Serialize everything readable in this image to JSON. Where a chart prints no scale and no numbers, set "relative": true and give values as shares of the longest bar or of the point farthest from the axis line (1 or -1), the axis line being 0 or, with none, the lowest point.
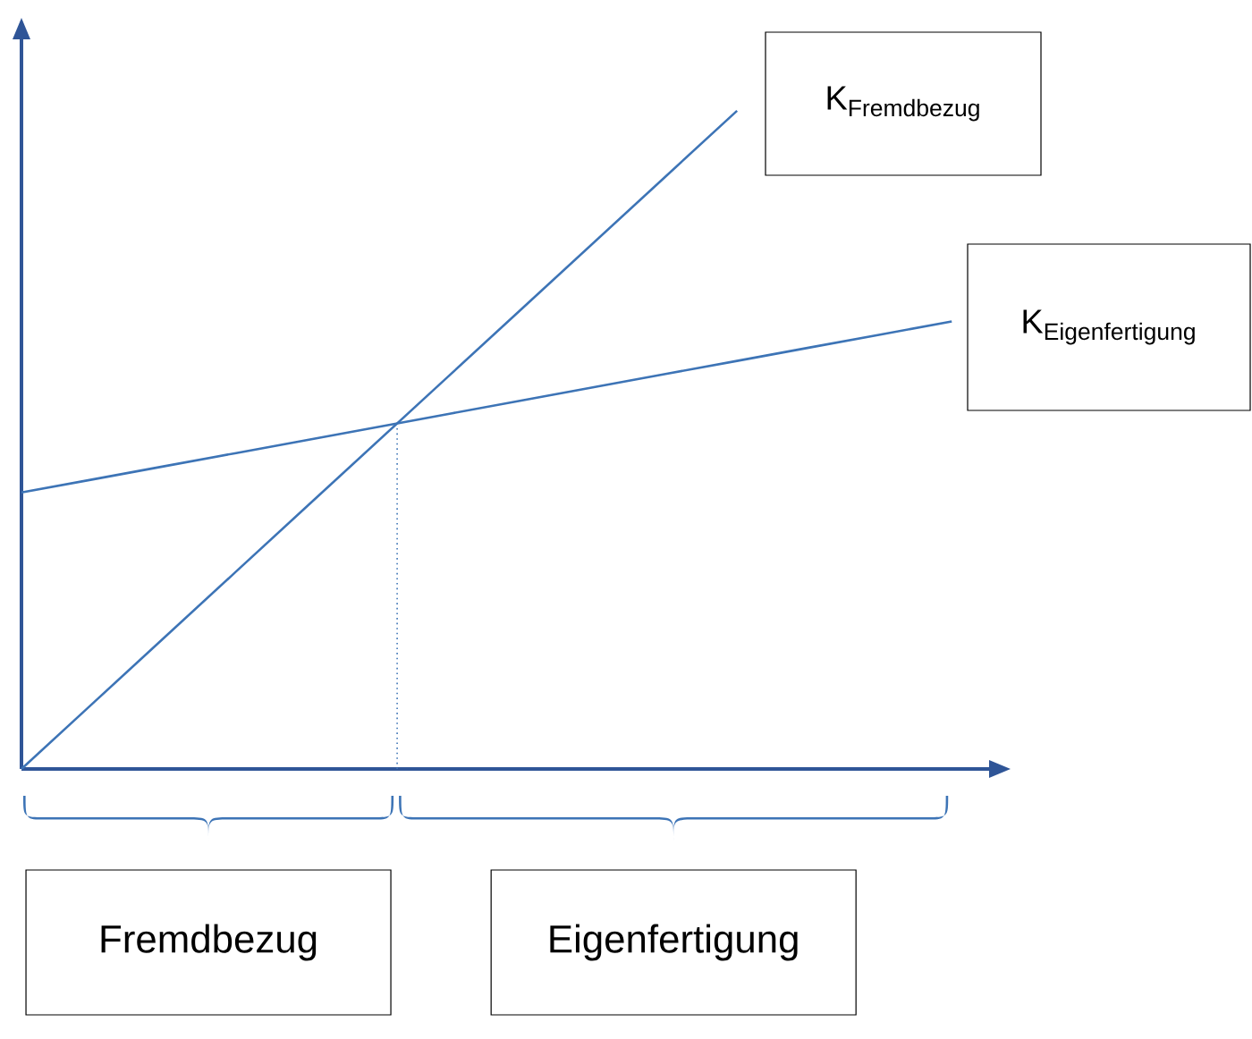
{
  "chart_data": {
    "type": "line",
    "relative": true,
    "categories": [
      null,
      null,
      null,
      null,
      null,
      null,
      null,
      null,
      null,
      null,
      null,
      null,
      null,
      null
    ],
    "series": [
      {
        "name": "\\mathrm{K}_{\\mathrm{Fremdbezug}}",
        "color": "#3d74b6",
        "values": [
          0,
          0.1,
          0.2,
          0.3,
          0.4,
          0.5,
          0.6,
          0.7,
          0.8,
          0.9,
          1,
          null,
          null,
          null
        ]
      },
      {
        "name": "\\mathrm{K}_{\\mathrm{Eigenfertigung}}",
        "color": "#3d74b6",
        "values": [
          0.42,
          0.44,
          0.46,
          0.48,
          0.5,
          0.52,
          0.54,
          0.56,
          0.58,
          0.6,
          0.62,
          0.64,
          0.66,
          0.68
        ]
      }
    ],
    "annotations": [
      "Fremdbezug",
      "Eigenfertigung"
    ]
  }
}
